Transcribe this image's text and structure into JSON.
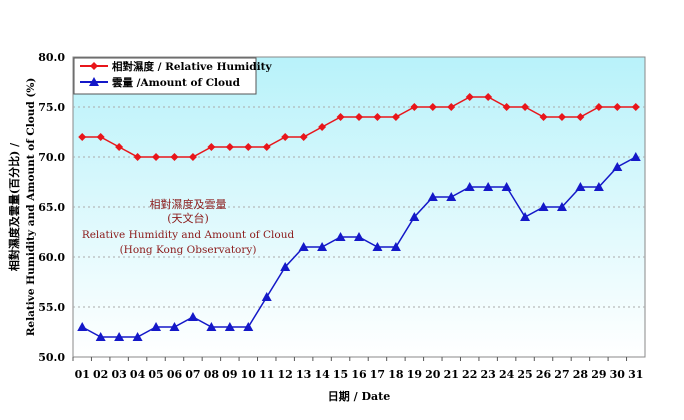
{
  "chart_data": {
    "type": "line",
    "title_lines": [
      "相對濕度及雲量",
      "(天文台)",
      "Relative Humidity and Amount of Cloud",
      "(Hong Kong Observatory)"
    ],
    "xlabel": "日期 / Date",
    "ylabel_lines": [
      "相對濕度及雲量(百分比) /",
      "Relative Humidity and Amount of Cloud (%)"
    ],
    "ylim": [
      50,
      80
    ],
    "yticks": [
      "50.0",
      "55.0",
      "60.0",
      "65.0",
      "70.0",
      "75.0",
      "80.0"
    ],
    "ytick_values": [
      50,
      55,
      60,
      65,
      70,
      75,
      80
    ],
    "grid": true,
    "legend_position": "top-left",
    "categories": [
      "01",
      "02",
      "03",
      "04",
      "05",
      "06",
      "07",
      "08",
      "09",
      "10",
      "11",
      "12",
      "13",
      "14",
      "15",
      "16",
      "17",
      "18",
      "19",
      "20",
      "21",
      "22",
      "23",
      "24",
      "25",
      "26",
      "27",
      "28",
      "29",
      "30",
      "31"
    ],
    "series": [
      {
        "name": "相對濕度 / Relative Humidity",
        "color": "#e8161b",
        "marker": "diamond",
        "values": [
          72,
          72,
          71,
          70,
          70,
          70,
          70,
          71,
          71,
          71,
          71,
          72,
          72,
          73,
          74,
          74,
          74,
          74,
          75,
          75,
          75,
          76,
          76,
          75,
          75,
          74,
          74,
          74,
          75,
          75,
          75
        ]
      },
      {
        "name": "雲量 /Amount of Cloud",
        "color": "#1418c8",
        "marker": "triangle",
        "values": [
          53,
          52,
          52,
          52,
          53,
          53,
          54,
          53,
          53,
          53,
          56,
          59,
          61,
          61,
          62,
          62,
          61,
          61,
          64,
          66,
          66,
          67,
          67,
          67,
          64,
          65,
          65,
          67,
          67,
          69,
          70
        ]
      }
    ]
  }
}
